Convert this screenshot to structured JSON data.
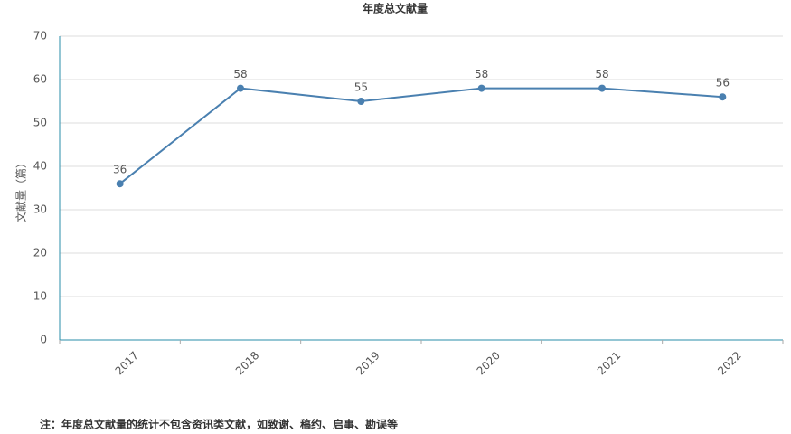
{
  "chart_data": {
    "type": "line",
    "title": "年度总文献量",
    "y_label": "文献量（篇）",
    "categories": [
      "2017",
      "2018",
      "2019",
      "2020",
      "2021",
      "2022"
    ],
    "values": [
      36,
      58,
      55,
      58,
      58,
      56
    ],
    "color": "#4a80b0",
    "ylim": [
      0,
      70
    ],
    "yticks": [
      0,
      10,
      20,
      30,
      40,
      50,
      60,
      70
    ],
    "grid": true,
    "note": "注：年度总文献量的统计不包含资讯类文献，如致谢、稿约、启事、勘误等"
  }
}
